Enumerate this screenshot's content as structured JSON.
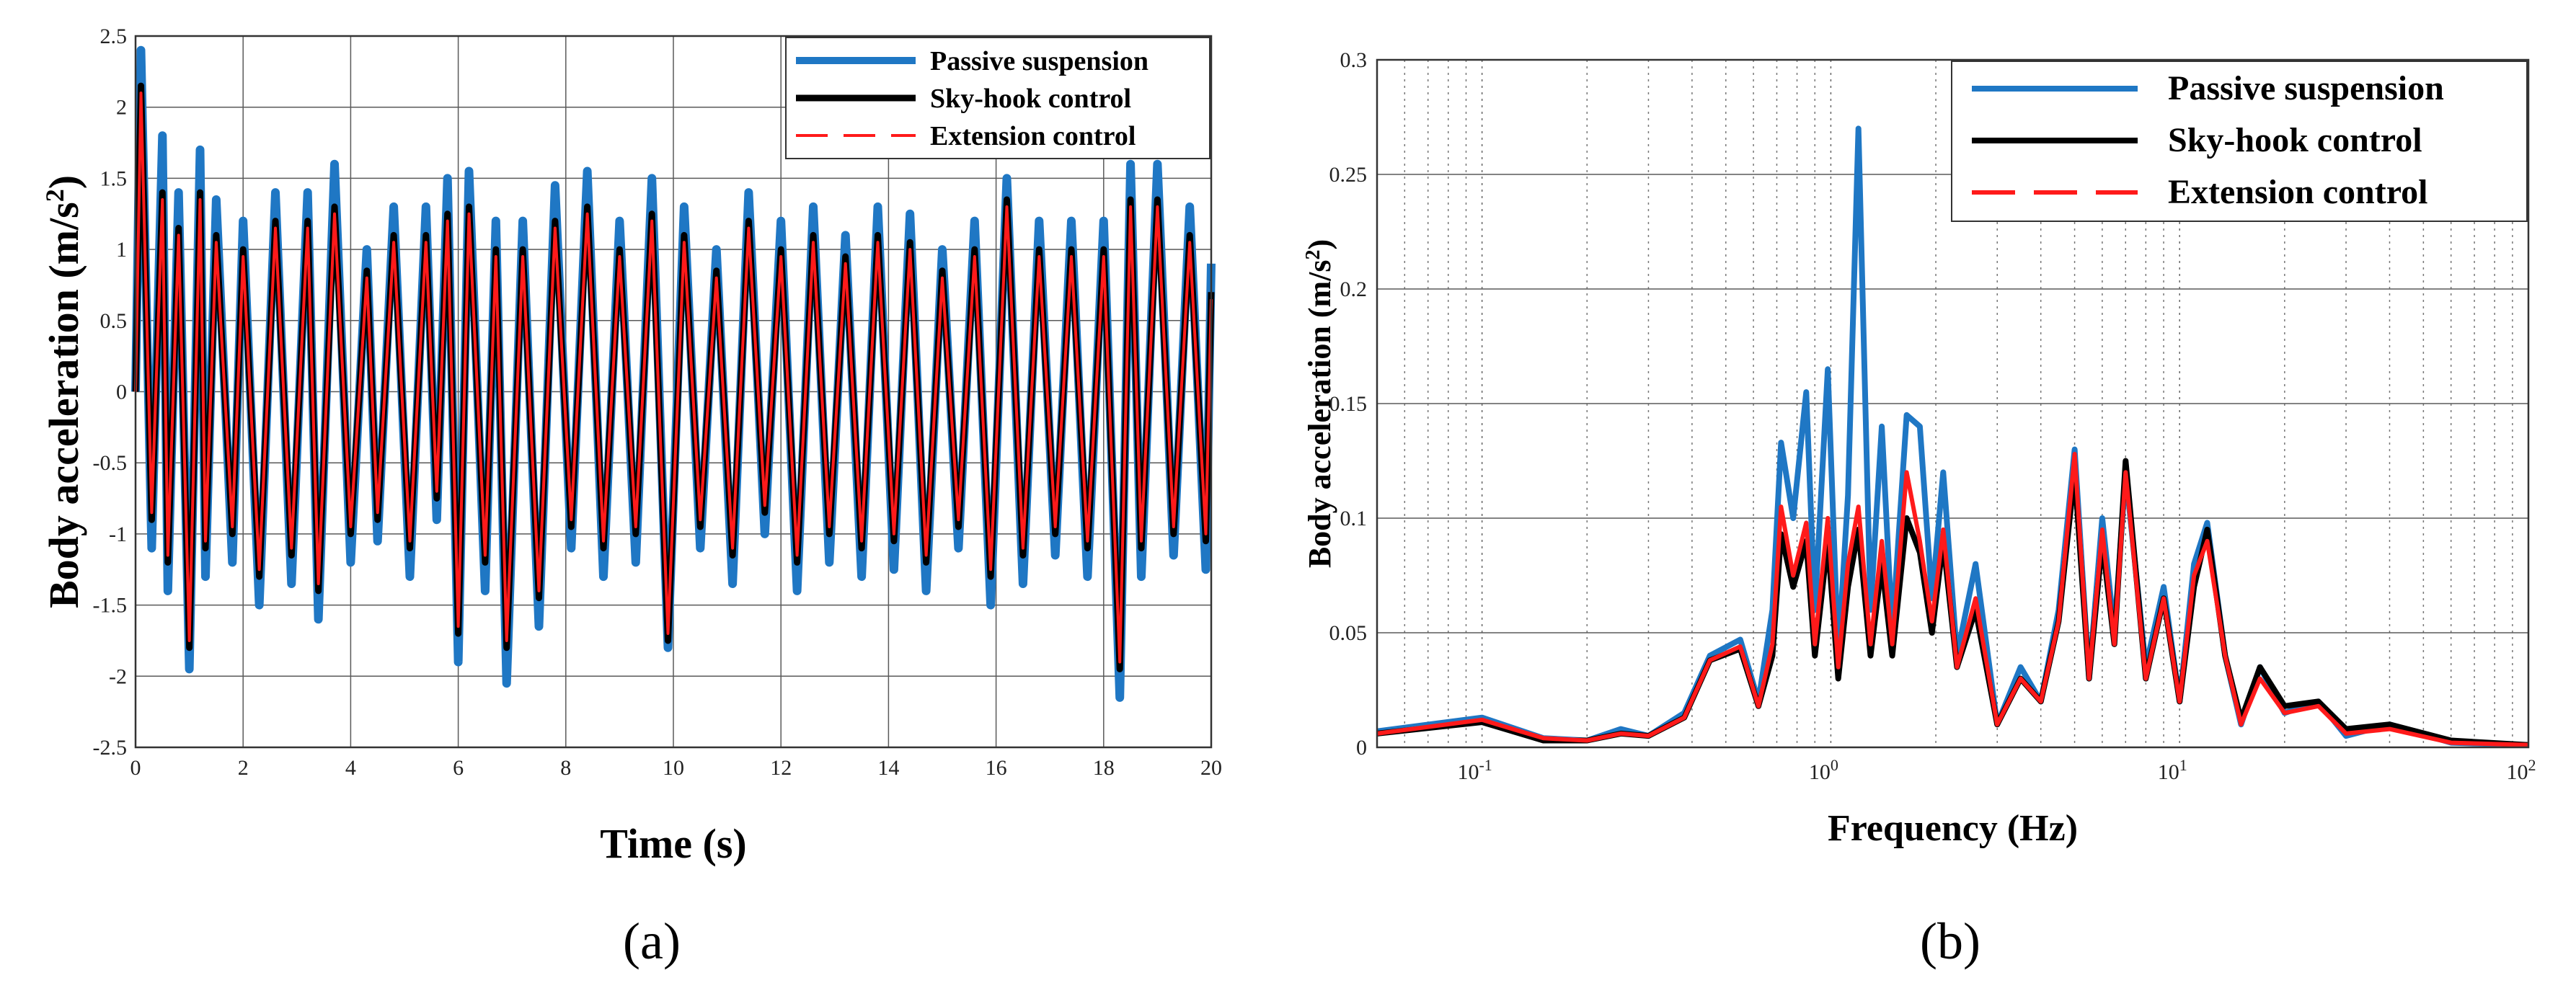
{
  "colors": {
    "passive": "#1f77c4",
    "skyhook": "#000000",
    "extension": "#ff1a1a",
    "grid": "#5a5a5a"
  },
  "chart_data": [
    {
      "type": "line",
      "panel": "a",
      "caption": "(a)",
      "xlabel": "Time (s)",
      "ylabel_main": "Body acceleration (m/s",
      "ylabel_sup": "2",
      "ylabel_end": ")",
      "xlim": [
        0,
        20
      ],
      "ylim": [
        -2.5,
        2.5
      ],
      "xticks": [
        0,
        2,
        4,
        6,
        8,
        10,
        12,
        14,
        16,
        18,
        20
      ],
      "xtick_labels": [
        "0",
        "2",
        "4",
        "6",
        "8",
        "10",
        "12",
        "14",
        "16",
        "18",
        "20"
      ],
      "yticks": [
        -2.5,
        -2,
        -1.5,
        -1,
        -0.5,
        0,
        0.5,
        1,
        1.5,
        2,
        2.5
      ],
      "ytick_labels": [
        "-2.5",
        "-2",
        "-1.5",
        "-1",
        "-0.5",
        "0",
        "0.5",
        "1",
        "1.5",
        "2",
        "2.5"
      ],
      "grid": true,
      "legend_position": "top-right",
      "series": [
        {
          "name": "Passive suspension",
          "key": "passive",
          "x": [
            0,
            0.1,
            0.3,
            0.5,
            0.6,
            0.8,
            1.0,
            1.2,
            1.3,
            1.5,
            1.8,
            2.0,
            2.3,
            2.6,
            2.9,
            3.2,
            3.4,
            3.7,
            4.0,
            4.3,
            4.5,
            4.8,
            5.1,
            5.4,
            5.6,
            5.8,
            6.0,
            6.2,
            6.5,
            6.7,
            6.9,
            7.2,
            7.5,
            7.8,
            8.1,
            8.4,
            8.7,
            9.0,
            9.3,
            9.6,
            9.9,
            10.2,
            10.5,
            10.8,
            11.1,
            11.4,
            11.7,
            12.0,
            12.3,
            12.6,
            12.9,
            13.2,
            13.5,
            13.8,
            14.1,
            14.4,
            14.7,
            15.0,
            15.3,
            15.6,
            15.9,
            16.2,
            16.5,
            16.8,
            17.1,
            17.4,
            17.7,
            18.0,
            18.3,
            18.5,
            18.7,
            19.0,
            19.3,
            19.6,
            19.9,
            20.0
          ],
          "y": [
            0,
            2.4,
            -1.1,
            1.8,
            -1.4,
            1.4,
            -1.95,
            1.7,
            -1.3,
            1.35,
            -1.2,
            1.2,
            -1.5,
            1.4,
            -1.35,
            1.4,
            -1.6,
            1.6,
            -1.2,
            1.0,
            -1.05,
            1.3,
            -1.3,
            1.3,
            -0.9,
            1.5,
            -1.9,
            1.55,
            -1.4,
            1.2,
            -2.05,
            1.2,
            -1.65,
            1.45,
            -1.1,
            1.55,
            -1.3,
            1.2,
            -1.2,
            1.5,
            -1.8,
            1.3,
            -1.1,
            1.0,
            -1.35,
            1.4,
            -1.0,
            1.2,
            -1.4,
            1.3,
            -1.2,
            1.1,
            -1.3,
            1.3,
            -1.25,
            1.25,
            -1.4,
            1.0,
            -1.1,
            1.2,
            -1.5,
            1.5,
            -1.35,
            1.2,
            -1.15,
            1.2,
            -1.3,
            1.2,
            -2.15,
            1.6,
            -1.3,
            1.6,
            -1.15,
            1.3,
            -1.25,
            0.9
          ]
        },
        {
          "name": "Sky-hook control",
          "key": "skyhook",
          "x": [
            0,
            0.1,
            0.3,
            0.5,
            0.6,
            0.8,
            1.0,
            1.2,
            1.3,
            1.5,
            1.8,
            2.0,
            2.3,
            2.6,
            2.9,
            3.2,
            3.4,
            3.7,
            4.0,
            4.3,
            4.5,
            4.8,
            5.1,
            5.4,
            5.6,
            5.8,
            6.0,
            6.2,
            6.5,
            6.7,
            6.9,
            7.2,
            7.5,
            7.8,
            8.1,
            8.4,
            8.7,
            9.0,
            9.3,
            9.6,
            9.9,
            10.2,
            10.5,
            10.8,
            11.1,
            11.4,
            11.7,
            12.0,
            12.3,
            12.6,
            12.9,
            13.2,
            13.5,
            13.8,
            14.1,
            14.4,
            14.7,
            15.0,
            15.3,
            15.6,
            15.9,
            16.2,
            16.5,
            16.8,
            17.1,
            17.4,
            17.7,
            18.0,
            18.3,
            18.5,
            18.7,
            19.0,
            19.3,
            19.6,
            19.9,
            20.0
          ],
          "y": [
            0,
            2.15,
            -0.9,
            1.4,
            -1.2,
            1.15,
            -1.8,
            1.4,
            -1.1,
            1.1,
            -1.0,
            1.0,
            -1.3,
            1.2,
            -1.15,
            1.2,
            -1.4,
            1.3,
            -1.0,
            0.85,
            -0.9,
            1.1,
            -1.1,
            1.1,
            -0.75,
            1.25,
            -1.7,
            1.3,
            -1.2,
            1.0,
            -1.8,
            1.0,
            -1.45,
            1.2,
            -0.95,
            1.3,
            -1.1,
            1.0,
            -1.0,
            1.25,
            -1.75,
            1.1,
            -0.95,
            0.85,
            -1.15,
            1.2,
            -0.85,
            1.0,
            -1.2,
            1.1,
            -1.0,
            0.95,
            -1.1,
            1.1,
            -1.05,
            1.05,
            -1.2,
            0.85,
            -0.95,
            1.0,
            -1.3,
            1.35,
            -1.15,
            1.0,
            -1.0,
            1.0,
            -1.1,
            1.0,
            -1.95,
            1.35,
            -1.1,
            1.35,
            -1.0,
            1.1,
            -1.05,
            0.7
          ]
        },
        {
          "name": "Extension control",
          "key": "extension",
          "x": [
            0,
            0.1,
            0.3,
            0.5,
            0.6,
            0.8,
            1.0,
            1.2,
            1.3,
            1.5,
            1.8,
            2.0,
            2.3,
            2.6,
            2.9,
            3.2,
            3.4,
            3.7,
            4.0,
            4.3,
            4.5,
            4.8,
            5.1,
            5.4,
            5.6,
            5.8,
            6.0,
            6.2,
            6.5,
            6.7,
            6.9,
            7.2,
            7.5,
            7.8,
            8.1,
            8.4,
            8.7,
            9.0,
            9.3,
            9.6,
            9.9,
            10.2,
            10.5,
            10.8,
            11.1,
            11.4,
            11.7,
            12.0,
            12.3,
            12.6,
            12.9,
            13.2,
            13.5,
            13.8,
            14.1,
            14.4,
            14.7,
            15.0,
            15.3,
            15.6,
            15.9,
            16.2,
            16.5,
            16.8,
            17.1,
            17.4,
            17.7,
            18.0,
            18.3,
            18.5,
            18.7,
            19.0,
            19.3,
            19.6,
            19.9,
            20.0
          ],
          "y": [
            0,
            2.1,
            -0.85,
            1.35,
            -1.15,
            1.1,
            -1.75,
            1.35,
            -1.05,
            1.05,
            -0.95,
            0.95,
            -1.25,
            1.15,
            -1.1,
            1.15,
            -1.35,
            1.25,
            -0.95,
            0.8,
            -0.85,
            1.05,
            -1.05,
            1.05,
            -0.7,
            1.2,
            -1.65,
            1.25,
            -1.15,
            0.95,
            -1.75,
            0.95,
            -1.4,
            1.15,
            -0.9,
            1.25,
            -1.05,
            0.95,
            -0.95,
            1.2,
            -1.7,
            1.05,
            -0.9,
            0.8,
            -1.1,
            1.15,
            -0.8,
            0.95,
            -1.15,
            1.05,
            -0.95,
            0.9,
            -1.05,
            1.05,
            -1.0,
            1.0,
            -1.15,
            0.8,
            -0.9,
            0.95,
            -1.25,
            1.3,
            -1.1,
            0.95,
            -0.95,
            0.95,
            -1.05,
            0.95,
            -1.9,
            1.3,
            -1.05,
            1.3,
            -0.95,
            1.05,
            -1.0,
            0.65
          ]
        }
      ]
    },
    {
      "type": "line",
      "panel": "b",
      "caption": "(b)",
      "xlabel": "Frequency (Hz)",
      "ylabel_main": "Body acceleration (m/s",
      "ylabel_sup": "2",
      "ylabel_end": ")",
      "xscale": "log",
      "xlim": [
        0.05,
        100
      ],
      "ylim": [
        0,
        0.3
      ],
      "xticks": [
        0.1,
        1,
        10,
        100
      ],
      "xtick_bases": [
        "10",
        "10",
        "10",
        "10"
      ],
      "xtick_exps": [
        "-1",
        "0",
        "1",
        "2"
      ],
      "yticks": [
        0,
        0.05,
        0.1,
        0.15,
        0.2,
        0.25,
        0.3
      ],
      "ytick_labels": [
        "0",
        "0.05",
        "0.1",
        "0.15",
        "0.2",
        "0.25",
        "0.3"
      ],
      "grid": true,
      "legend_position": "top-right",
      "series": [
        {
          "name": "Passive suspension",
          "key": "passive",
          "x": [
            0.05,
            0.1,
            0.15,
            0.2,
            0.25,
            0.3,
            0.38,
            0.45,
            0.55,
            0.62,
            0.68,
            0.72,
            0.78,
            0.85,
            0.9,
            0.98,
            1.05,
            1.12,
            1.2,
            1.3,
            1.4,
            1.5,
            1.65,
            1.8,
            1.95,
            2.1,
            2.3,
            2.6,
            3.0,
            3.5,
            4.0,
            4.5,
            5.0,
            5.5,
            6.0,
            6.5,
            7.0,
            8.0,
            9.0,
            10.0,
            11.0,
            12.0,
            13.5,
            15.0,
            17.0,
            20.0,
            25.0,
            30.0,
            40.0,
            60.0,
            100.0
          ],
          "y": [
            0.007,
            0.013,
            0.004,
            0.003,
            0.008,
            0.005,
            0.015,
            0.04,
            0.047,
            0.02,
            0.06,
            0.133,
            0.1,
            0.155,
            0.06,
            0.165,
            0.04,
            0.11,
            0.27,
            0.06,
            0.14,
            0.05,
            0.145,
            0.14,
            0.065,
            0.12,
            0.04,
            0.08,
            0.01,
            0.035,
            0.02,
            0.06,
            0.13,
            0.03,
            0.1,
            0.05,
            0.12,
            0.035,
            0.07,
            0.02,
            0.08,
            0.098,
            0.04,
            0.01,
            0.035,
            0.015,
            0.02,
            0.005,
            0.01,
            0.002,
            0.001
          ]
        },
        {
          "name": "Sky-hook control",
          "key": "skyhook",
          "x": [
            0.05,
            0.1,
            0.15,
            0.2,
            0.25,
            0.3,
            0.38,
            0.45,
            0.55,
            0.62,
            0.68,
            0.72,
            0.78,
            0.85,
            0.9,
            0.98,
            1.05,
            1.12,
            1.2,
            1.3,
            1.4,
            1.5,
            1.65,
            1.8,
            1.95,
            2.1,
            2.3,
            2.6,
            3.0,
            3.5,
            4.0,
            4.5,
            5.0,
            5.5,
            6.0,
            6.5,
            7.0,
            8.0,
            9.0,
            10.0,
            11.0,
            12.0,
            13.5,
            15.0,
            17.0,
            20.0,
            25.0,
            30.0,
            40.0,
            60.0,
            100.0
          ],
          "y": [
            0.006,
            0.011,
            0.003,
            0.003,
            0.006,
            0.005,
            0.013,
            0.038,
            0.043,
            0.018,
            0.04,
            0.093,
            0.07,
            0.09,
            0.04,
            0.09,
            0.03,
            0.07,
            0.095,
            0.04,
            0.08,
            0.04,
            0.1,
            0.085,
            0.05,
            0.09,
            0.035,
            0.06,
            0.01,
            0.03,
            0.02,
            0.055,
            0.12,
            0.03,
            0.09,
            0.045,
            0.125,
            0.03,
            0.065,
            0.02,
            0.07,
            0.095,
            0.04,
            0.012,
            0.035,
            0.018,
            0.02,
            0.008,
            0.01,
            0.003,
            0.001
          ]
        },
        {
          "name": "Extension control",
          "key": "extension",
          "x": [
            0.05,
            0.1,
            0.15,
            0.2,
            0.25,
            0.3,
            0.38,
            0.45,
            0.55,
            0.62,
            0.68,
            0.72,
            0.78,
            0.85,
            0.9,
            0.98,
            1.05,
            1.12,
            1.2,
            1.3,
            1.4,
            1.5,
            1.65,
            1.8,
            1.95,
            2.1,
            2.3,
            2.6,
            3.0,
            3.5,
            4.0,
            4.5,
            5.0,
            5.5,
            6.0,
            6.5,
            7.0,
            8.0,
            9.0,
            10.0,
            11.0,
            12.0,
            13.5,
            15.0,
            17.0,
            20.0,
            25.0,
            30.0,
            40.0,
            60.0,
            100.0
          ],
          "y": [
            0.006,
            0.012,
            0.004,
            0.003,
            0.006,
            0.005,
            0.013,
            0.038,
            0.044,
            0.018,
            0.045,
            0.105,
            0.075,
            0.098,
            0.045,
            0.1,
            0.035,
            0.08,
            0.105,
            0.045,
            0.09,
            0.045,
            0.12,
            0.09,
            0.055,
            0.095,
            0.035,
            0.065,
            0.01,
            0.03,
            0.02,
            0.055,
            0.128,
            0.03,
            0.095,
            0.045,
            0.12,
            0.03,
            0.065,
            0.02,
            0.075,
            0.09,
            0.04,
            0.01,
            0.03,
            0.015,
            0.018,
            0.006,
            0.008,
            0.002,
            0.001
          ]
        }
      ]
    }
  ]
}
